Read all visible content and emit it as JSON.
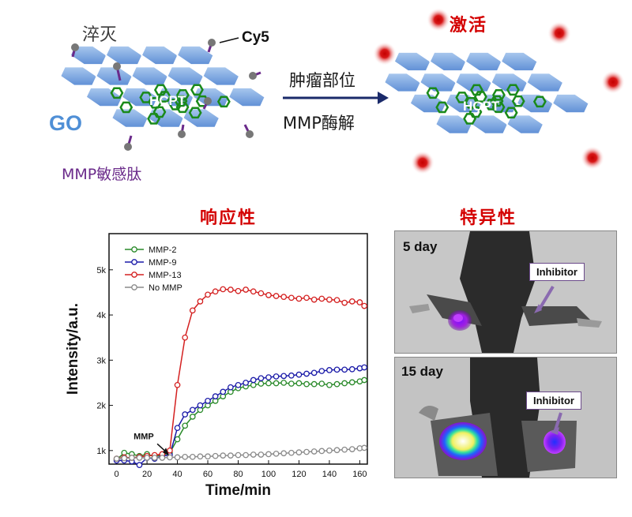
{
  "mechanism": {
    "quench_label": "淬灭",
    "cy5_label": "Cy5",
    "go_label": "GO",
    "drug_label": "HCPT",
    "peptide_label": "MMP敏感肽",
    "arrow_top": "肿瘤部位",
    "arrow_bottom": "MMP酶解",
    "activate_label": "激活",
    "drug_label_right": "HCPT"
  },
  "response_panel": {
    "title": "响应性"
  },
  "specificity_panel": {
    "title": "特异性",
    "photos": [
      {
        "day": "5 day",
        "inhibitor": "Inhibitor"
      },
      {
        "day": "15 day",
        "inhibitor": "Inhibitor"
      }
    ]
  },
  "chart_data": {
    "type": "line",
    "xlabel": "Time/min",
    "ylabel": "Intensity/a.u.",
    "xlim": [
      -5,
      165
    ],
    "ylim": [
      700,
      5800
    ],
    "xticks": [
      0,
      20,
      40,
      60,
      80,
      100,
      120,
      140,
      160
    ],
    "yticks": [
      1000,
      2000,
      3000,
      4000,
      5000
    ],
    "ytick_labels": [
      "1k",
      "2k",
      "3k",
      "4k",
      "5k"
    ],
    "legend_position": "top-left",
    "annotation": {
      "text": "MMP",
      "x": 33,
      "y": 870
    },
    "series": [
      {
        "name": "MMP-2",
        "color": "#2a8a2a",
        "x": [
          0,
          5,
          10,
          15,
          20,
          25,
          30,
          35,
          40,
          45,
          50,
          55,
          60,
          65,
          70,
          75,
          80,
          85,
          90,
          95,
          100,
          105,
          110,
          115,
          120,
          125,
          130,
          135,
          140,
          145,
          150,
          155,
          160,
          163
        ],
        "y": [
          800,
          950,
          920,
          880,
          920,
          870,
          900,
          950,
          1250,
          1550,
          1750,
          1900,
          2000,
          2100,
          2200,
          2300,
          2380,
          2420,
          2450,
          2480,
          2490,
          2490,
          2500,
          2480,
          2490,
          2470,
          2470,
          2480,
          2450,
          2470,
          2490,
          2510,
          2530,
          2560
        ]
      },
      {
        "name": "MMP-9",
        "color": "#1a1aa8",
        "x": [
          0,
          5,
          10,
          15,
          20,
          25,
          30,
          35,
          40,
          45,
          50,
          55,
          60,
          65,
          70,
          75,
          80,
          85,
          90,
          95,
          100,
          105,
          110,
          115,
          120,
          125,
          130,
          135,
          140,
          145,
          150,
          155,
          160,
          163
        ],
        "y": [
          780,
          780,
          760,
          680,
          840,
          820,
          880,
          900,
          1500,
          1800,
          1900,
          2000,
          2100,
          2200,
          2300,
          2400,
          2450,
          2500,
          2560,
          2600,
          2620,
          2640,
          2650,
          2660,
          2680,
          2700,
          2720,
          2760,
          2780,
          2790,
          2790,
          2800,
          2820,
          2840
        ]
      },
      {
        "name": "MMP-13",
        "color": "#d42020",
        "x": [
          0,
          5,
          10,
          15,
          20,
          25,
          30,
          35,
          40,
          45,
          50,
          55,
          60,
          65,
          70,
          75,
          80,
          85,
          90,
          95,
          100,
          105,
          110,
          115,
          120,
          125,
          130,
          135,
          140,
          145,
          150,
          155,
          160,
          163
        ],
        "y": [
          820,
          850,
          840,
          860,
          880,
          900,
          920,
          1000,
          2450,
          3500,
          4100,
          4300,
          4450,
          4520,
          4570,
          4560,
          4530,
          4560,
          4520,
          4480,
          4440,
          4420,
          4400,
          4380,
          4360,
          4380,
          4340,
          4360,
          4340,
          4330,
          4270,
          4300,
          4280,
          4200
        ]
      },
      {
        "name": "No MMP",
        "color": "#8a8a8a",
        "x": [
          0,
          5,
          10,
          15,
          20,
          25,
          30,
          35,
          40,
          45,
          50,
          55,
          60,
          65,
          70,
          75,
          80,
          85,
          90,
          95,
          100,
          105,
          110,
          115,
          120,
          125,
          130,
          135,
          140,
          145,
          150,
          155,
          160,
          163
        ],
        "y": [
          820,
          830,
          840,
          840,
          840,
          840,
          840,
          850,
          850,
          860,
          860,
          870,
          870,
          880,
          890,
          890,
          900,
          900,
          910,
          910,
          920,
          930,
          940,
          950,
          960,
          970,
          980,
          990,
          1000,
          1010,
          1020,
          1030,
          1050,
          1060
        ]
      }
    ]
  }
}
